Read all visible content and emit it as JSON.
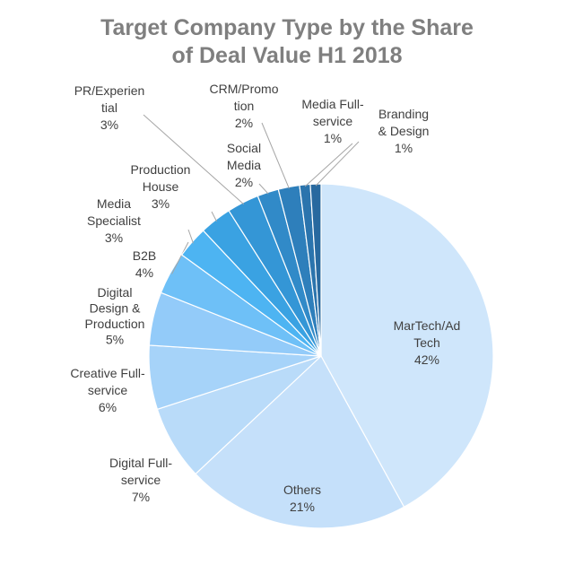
{
  "chart_data": {
    "type": "pie",
    "title_lines": [
      "Target Company Type by the Share",
      "of Deal Value H1 2018"
    ],
    "slices": [
      {
        "name": "MarTech/Ad Tech",
        "value": 42,
        "label_lines": [
          "MarTech/Ad",
          "Tech",
          "42%"
        ],
        "color": "#cfe6fb"
      },
      {
        "name": "Others",
        "value": 21,
        "label_lines": [
          "Others",
          "21%"
        ],
        "color": "#c5e0fa"
      },
      {
        "name": "Digital Full-service",
        "value": 7,
        "label_lines": [
          "Digital Full-",
          "service",
          "7%"
        ],
        "color": "#b9dbf9"
      },
      {
        "name": "Creative Full-service",
        "value": 6,
        "label_lines": [
          "Creative Full-",
          "service",
          "6%"
        ],
        "color": "#a6d3f9"
      },
      {
        "name": "Digital Design & Production",
        "value": 5,
        "label_lines": [
          "Digital",
          "Design &",
          "Production",
          "5%"
        ],
        "color": "#93cbf9"
      },
      {
        "name": "B2B",
        "value": 4,
        "label_lines": [
          "B2B",
          "4%"
        ],
        "color": "#6ec0f7"
      },
      {
        "name": "Media Specialist",
        "value": 3,
        "label_lines": [
          "Media",
          "Specialist",
          "3%"
        ],
        "color": "#4db4f2"
      },
      {
        "name": "Production House",
        "value": 3,
        "label_lines": [
          "Production",
          "House",
          "3%"
        ],
        "color": "#3aa2e2"
      },
      {
        "name": "PR/Experiential",
        "value": 3,
        "label_lines": [
          "PR/Experien",
          "tial",
          "3%"
        ],
        "color": "#3496d6"
      },
      {
        "name": "Social Media",
        "value": 2,
        "label_lines": [
          "Social",
          "Media",
          "2%"
        ],
        "color": "#318ac8"
      },
      {
        "name": "CRM/Promotion",
        "value": 2,
        "label_lines": [
          "CRM/Promo",
          "tion",
          "2%"
        ],
        "color": "#2e7fbb"
      },
      {
        "name": "Media Full-service",
        "value": 1,
        "label_lines": [
          "Media Full-",
          "service",
          "1%"
        ],
        "color": "#2b74ad"
      },
      {
        "name": "Branding & Design",
        "value": 1,
        "label_lines": [
          "Branding",
          "& Design",
          "1%"
        ],
        "color": "#28699f"
      }
    ]
  }
}
